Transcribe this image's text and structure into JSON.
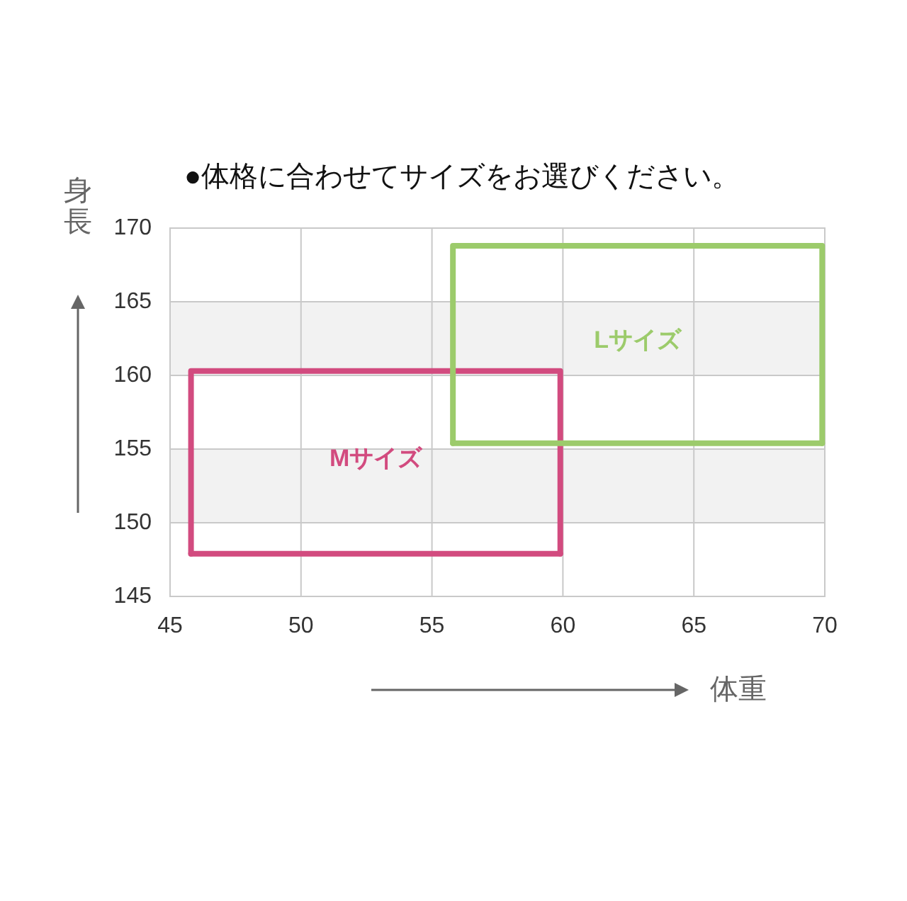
{
  "chart_data": {
    "type": "line",
    "title": "●体格に合わせてサイズをお選びください。",
    "xlabel": "体重",
    "ylabel": "身長",
    "xlim": [
      45,
      70
    ],
    "xticks": [
      45,
      50,
      55,
      60,
      65,
      70
    ],
    "ylim": [
      145,
      170
    ],
    "yticks": [
      145,
      150,
      155,
      160,
      165,
      170
    ],
    "grid": true,
    "marker": "none",
    "line_style": "solid",
    "bands": [
      {
        "axis": "y",
        "from": 150,
        "to": 155,
        "color": "#f2f2f2"
      },
      {
        "axis": "y",
        "from": 160,
        "to": 165,
        "color": "#f2f2f2"
      }
    ],
    "series": [
      {
        "name": "Mサイズ",
        "color": "#d24b7f",
        "x": [
          45.8,
          45.8,
          59.9,
          59.9
        ],
        "values": [
          147.9,
          160.3,
          160.3,
          147.9
        ]
      },
      {
        "color": "#d24b7f",
        "x": [
          45.8,
          59.9
        ],
        "values": [
          147.9,
          147.9
        ]
      },
      {
        "name": "Lサイズ",
        "color": "#9ccb6b",
        "x": [
          55.8,
          55.8,
          69.9,
          69.9
        ],
        "values": [
          155.4,
          168.8,
          168.8,
          155.4
        ]
      },
      {
        "color": "#9ccb6b",
        "x": [
          55.8,
          69.9
        ],
        "values": [
          155.4,
          155.4
        ]
      }
    ]
  }
}
